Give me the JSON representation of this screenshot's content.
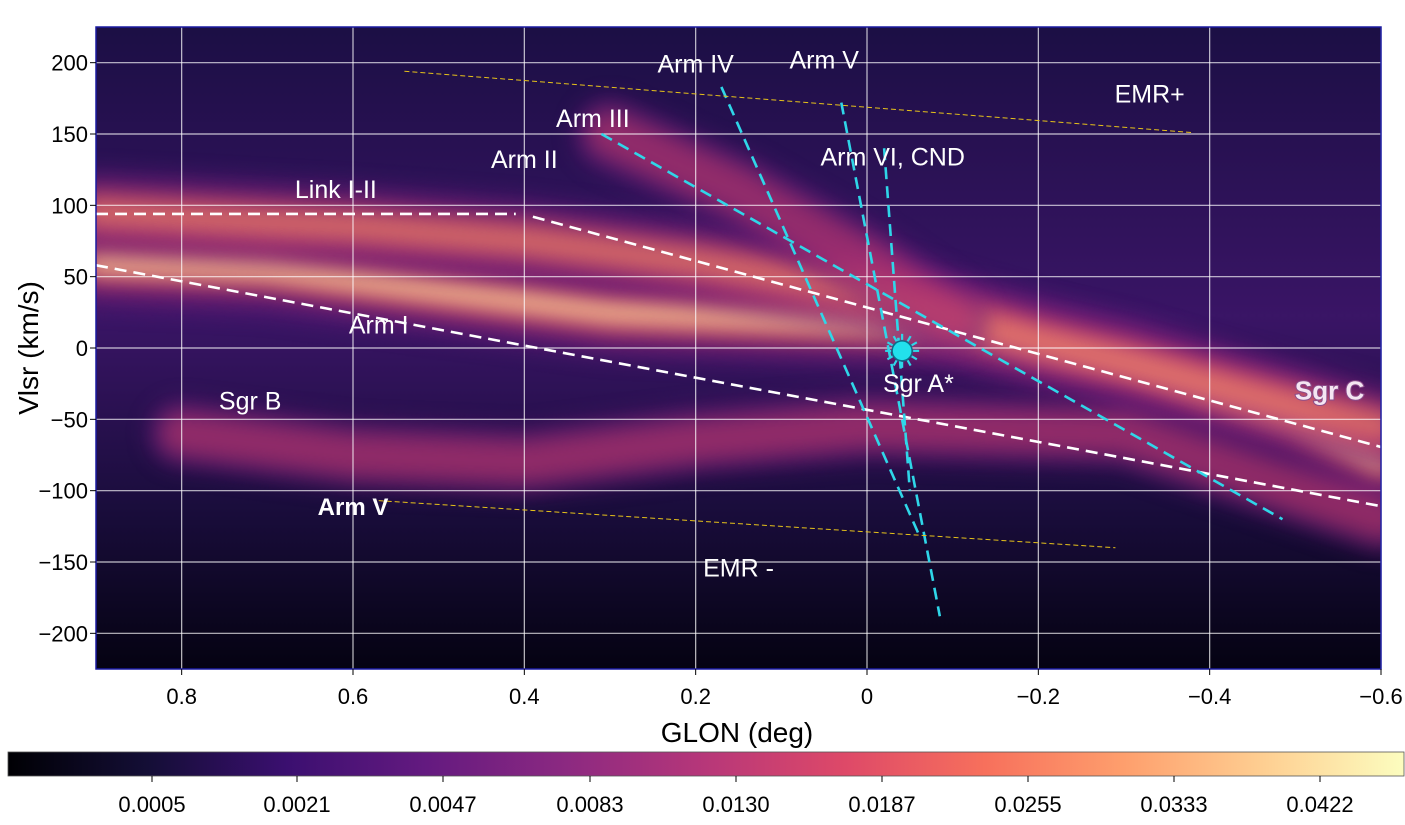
{
  "chart_data": {
    "type": "heatmap",
    "title": "",
    "xlabel": "GLON (deg)",
    "ylabel": "Vlsr (km/s)",
    "xlim": [
      0.9,
      -0.6
    ],
    "ylim": [
      -225,
      225
    ],
    "x_ticks": [
      "0.8",
      "0.6",
      "0.4",
      "0.2",
      "0",
      "−0.2",
      "−0.4",
      "−0.6"
    ],
    "y_ticks": [
      "−200",
      "−150",
      "−100",
      "−50",
      "0",
      "50",
      "100",
      "150",
      "200"
    ],
    "x_tick_values": [
      0.8,
      0.6,
      0.4,
      0.2,
      0,
      -0.2,
      -0.4,
      -0.6
    ],
    "y_tick_values": [
      -200,
      -150,
      -100,
      -50,
      0,
      50,
      100,
      150,
      200
    ],
    "grid": true,
    "colormap": "magma",
    "colorbar": {
      "ticks": [
        "0.0005",
        "0.0021",
        "0.0047",
        "0.0083",
        "0.0130",
        "0.0187",
        "0.0255",
        "0.0333",
        "0.0422"
      ]
    },
    "annotations": [
      {
        "text": "Arm IV",
        "x": 0.2,
        "v": 193
      },
      {
        "text": "Arm V",
        "x": 0.05,
        "v": 196
      },
      {
        "text": "EMR+",
        "x": -0.33,
        "v": 172
      },
      {
        "text": "Arm III",
        "x": 0.32,
        "v": 155
      },
      {
        "text": "Arm II",
        "x": 0.4,
        "v": 126
      },
      {
        "text": "Arm VI, CND",
        "x": -0.03,
        "v": 128
      },
      {
        "text": "Link I-II",
        "x": 0.62,
        "v": 105
      },
      {
        "text": "Arm I",
        "x": 0.57,
        "v": 10
      },
      {
        "text": "Sgr A*",
        "x": -0.06,
        "v": -31
      },
      {
        "text": "Sgr B",
        "x": 0.72,
        "v": -43
      },
      {
        "text": "Sgr C",
        "x": -0.54,
        "v": -36
      },
      {
        "text": "Arm V",
        "x": 0.6,
        "v": -117
      },
      {
        "text": "EMR -",
        "x": 0.15,
        "v": -160
      }
    ],
    "overlay_lines": [
      {
        "name": "Link I-II",
        "style": "white-dashed",
        "points": [
          [
            0.9,
            94
          ],
          [
            0.41,
            94
          ]
        ]
      },
      {
        "name": "Link I-II continuation",
        "style": "white-dashed",
        "points": [
          [
            0.39,
            92
          ],
          [
            -0.61,
            -71
          ]
        ]
      },
      {
        "name": "Arm I",
        "style": "white-dashed",
        "points": [
          [
            0.9,
            58
          ],
          [
            -0.61,
            -112
          ]
        ]
      },
      {
        "name": "Arm III",
        "style": "cyan-dashed",
        "points": [
          [
            0.31,
            150
          ],
          [
            -0.485,
            -120
          ]
        ]
      },
      {
        "name": "Arm IV",
        "style": "cyan-dashed",
        "points": [
          [
            0.17,
            183
          ],
          [
            -0.06,
            -130
          ]
        ]
      },
      {
        "name": "Arm V",
        "style": "cyan-dashed",
        "points": [
          [
            0.03,
            172
          ],
          [
            -0.085,
            -188
          ]
        ]
      },
      {
        "name": "Arm VI, CND",
        "style": "cyan-dashed",
        "points": [
          [
            -0.02,
            140
          ],
          [
            -0.05,
            -100
          ]
        ]
      },
      {
        "name": "EMR+",
        "style": "yellow-thin-dashed",
        "points": [
          [
            0.54,
            194
          ],
          [
            -0.38,
            151
          ]
        ]
      },
      {
        "name": "EMR -",
        "style": "yellow-thin-dashed",
        "points": [
          [
            0.57,
            -107
          ],
          [
            -0.29,
            -140
          ]
        ]
      }
    ],
    "markers": [
      {
        "name": "Sgr A*",
        "symbol": "cyan-sun",
        "x": -0.041,
        "v": -2
      }
    ],
    "emission_ridges": [
      {
        "path": [
          [
            0.9,
            60
          ],
          [
            0.7,
            55
          ],
          [
            0.5,
            40
          ],
          [
            0.3,
            25
          ],
          [
            0.1,
            20
          ],
          [
            -0.1,
            15
          ],
          [
            -0.3,
            -10
          ],
          [
            -0.5,
            -50
          ],
          [
            -0.6,
            -80
          ]
        ],
        "peak": 1.0
      },
      {
        "path": [
          [
            0.9,
            95
          ],
          [
            0.6,
            85
          ],
          [
            0.4,
            75
          ],
          [
            0.2,
            60
          ],
          [
            0.0,
            40
          ],
          [
            -0.2,
            5
          ],
          [
            -0.4,
            -25
          ],
          [
            -0.6,
            -55
          ]
        ],
        "peak": 0.85
      },
      {
        "path": [
          [
            0.3,
            150
          ],
          [
            0.15,
            110
          ],
          [
            0.0,
            60
          ],
          [
            -0.1,
            20
          ]
        ],
        "peak": 0.55
      },
      {
        "path": [
          [
            0.8,
            -60
          ],
          [
            0.6,
            -75
          ],
          [
            0.4,
            -80
          ],
          [
            0.2,
            -65
          ],
          [
            0.0,
            -55
          ],
          [
            -0.3,
            -60
          ],
          [
            -0.6,
            -120
          ]
        ],
        "peak": 0.4
      }
    ]
  }
}
